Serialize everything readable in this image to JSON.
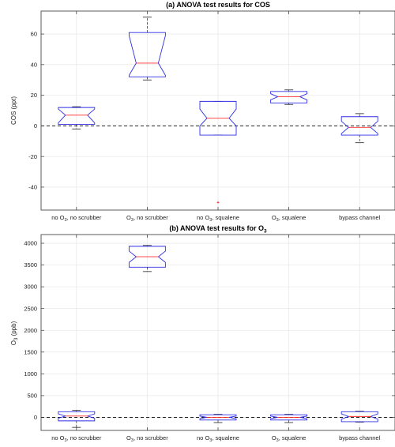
{
  "chart_data": [
    {
      "type": "boxplot",
      "title": "(a) ANOVA test results for COS",
      "ylabel": "COS (ppt)",
      "ylim": [
        -55,
        75
      ],
      "yticks": [
        -40,
        -20,
        0,
        20,
        40,
        60
      ],
      "grid": true,
      "reference_line": 0,
      "categories": [
        {
          "pre": "no O",
          "sub": "3",
          "post": ", no scrubber"
        },
        {
          "pre": "O",
          "sub": "3",
          "post": ", no scrubber"
        },
        {
          "pre": "no O",
          "sub": "3",
          "post": ", squalene"
        },
        {
          "pre": "O",
          "sub": "3",
          "post": ", squalene"
        },
        {
          "pre": "bypass channel",
          "sub": "",
          "post": ""
        }
      ],
      "boxes": [
        {
          "whisker_low": -2,
          "q1": 1,
          "notch_low": 2,
          "median": 7,
          "notch_high": 11,
          "q3": 12,
          "whisker_high": 12.5,
          "outliers": []
        },
        {
          "whisker_low": 30,
          "q1": 32,
          "notch_low": 33,
          "median": 41,
          "notch_high": 59,
          "q3": 61,
          "whisker_high": 71,
          "outliers": []
        },
        {
          "whisker_low": -6,
          "q1": -6,
          "notch_low": 0,
          "median": 5,
          "notch_high": 11,
          "q3": 16,
          "whisker_high": 16,
          "outliers": [
            -50
          ]
        },
        {
          "whisker_low": 14,
          "q1": 15,
          "notch_low": 17,
          "median": 19,
          "notch_high": 21,
          "q3": 22.5,
          "whisker_high": 23.5,
          "outliers": []
        },
        {
          "whisker_low": -11,
          "q1": -6,
          "notch_low": -5,
          "median": -1,
          "notch_high": 3,
          "q3": 6,
          "whisker_high": 8,
          "outliers": []
        }
      ]
    },
    {
      "type": "boxplot",
      "title_pre": "(b) ANOVA test results for O",
      "title_sub": "3",
      "ylabel_pre": "O",
      "ylabel_sub": "3",
      "ylabel_post": " (ppb)",
      "ylim": [
        -300,
        4200
      ],
      "yticks": [
        0,
        500,
        1000,
        1500,
        2000,
        2500,
        3000,
        3500,
        4000
      ],
      "grid": true,
      "reference_line": 0,
      "categories": [
        {
          "pre": "no O",
          "sub": "3",
          "post": ", no scrubber"
        },
        {
          "pre": "O",
          "sub": "3",
          "post": ", no scrubber"
        },
        {
          "pre": "no O",
          "sub": "3",
          "post": ", squalene"
        },
        {
          "pre": "O",
          "sub": "3",
          "post": ", squalene"
        },
        {
          "pre": "bypass channel",
          "sub": "",
          "post": ""
        }
      ],
      "boxes": [
        {
          "whisker_low": -230,
          "q1": -80,
          "notch_low": -20,
          "median": 30,
          "notch_high": 80,
          "q3": 130,
          "whisker_high": 160,
          "outliers": []
        },
        {
          "whisker_low": 3350,
          "q1": 3450,
          "notch_low": 3560,
          "median": 3690,
          "notch_high": 3820,
          "q3": 3930,
          "whisker_high": 3950,
          "outliers": []
        },
        {
          "whisker_low": -120,
          "q1": -60,
          "notch_low": -30,
          "median": 0,
          "notch_high": 30,
          "q3": 60,
          "whisker_high": 70,
          "outliers": []
        },
        {
          "whisker_low": -120,
          "q1": -60,
          "notch_low": -30,
          "median": 0,
          "notch_high": 30,
          "q3": 60,
          "whisker_high": 70,
          "outliers": []
        },
        {
          "whisker_low": -110,
          "q1": -100,
          "notch_low": -40,
          "median": 20,
          "notch_high": 80,
          "q3": 130,
          "whisker_high": 140,
          "outliers": []
        }
      ]
    }
  ],
  "colors": {
    "box": "#2f2fe6",
    "median": "#ff2b2b",
    "whisker": "#222222",
    "outlier": "#ff2b2b",
    "grid": "#e3e3e3",
    "axis": "#333333",
    "reference": "#222222"
  }
}
